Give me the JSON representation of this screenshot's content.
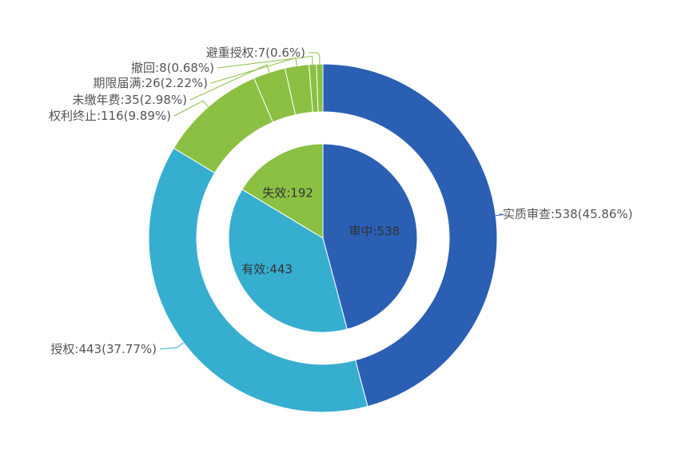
{
  "chart_data": {
    "type": "pie",
    "subtype": "nested-donut",
    "inner": {
      "slices": [
        {
          "name": "审中",
          "value": 538,
          "label": "审中:538",
          "color": "#2a5fb4"
        },
        {
          "name": "有效",
          "value": 443,
          "label": "有效:443",
          "color": "#36aed0"
        },
        {
          "name": "失效",
          "value": 192,
          "label": "失效:192",
          "color": "#8bc043"
        }
      ]
    },
    "outer": {
      "slices": [
        {
          "name": "实质审查",
          "value": 538,
          "percent": 45.86,
          "label": "实质审查:538(45.86%)",
          "color": "#2a5fb4"
        },
        {
          "name": "授权",
          "value": 443,
          "percent": 37.77,
          "label": "授权:443(37.77%)",
          "color": "#36aed0"
        },
        {
          "name": "权利终止",
          "value": 116,
          "percent": 9.89,
          "label": "权利终止:116(9.89%)",
          "color": "#8bc043"
        },
        {
          "name": "未缴年费",
          "value": 35,
          "percent": 2.98,
          "label": "未缴年费:35(2.98%)",
          "color": "#8bc043"
        },
        {
          "name": "期限届满",
          "value": 26,
          "percent": 2.22,
          "label": "期限届满:26(2.22%)",
          "color": "#8bc043"
        },
        {
          "name": "撤回",
          "value": 8,
          "percent": 0.68,
          "label": "撤回:8(0.68%)",
          "color": "#8bc043"
        },
        {
          "name": "避重授权",
          "value": 7,
          "percent": 0.6,
          "label": "避重授权:7(0.6%)",
          "color": "#8bc043"
        }
      ]
    },
    "legend": "none"
  }
}
